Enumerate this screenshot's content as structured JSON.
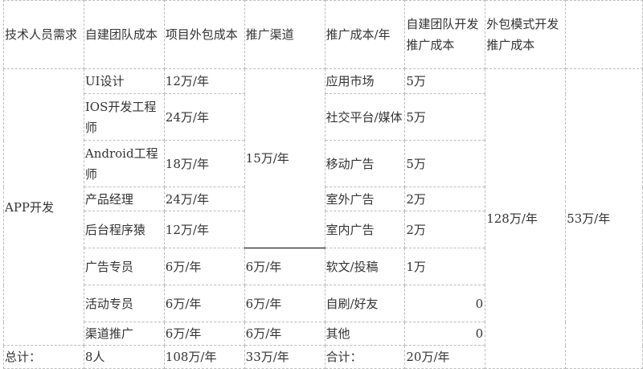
{
  "headers": [
    "技术人员需求",
    "自建团队成本",
    "项目外包成本",
    "推广渠道",
    "推广成本/年",
    "自建团队开发推广成本",
    "外包模式开发推广成本",
    ""
  ],
  "category": "APP开发",
  "promo_channel_shared": "15万/年",
  "self_build_total": "128万/年",
  "outsource_total": "53万/年",
  "rows": [
    {
      "role": "UI设计",
      "outsource": "12万/年",
      "channel": "应用市场",
      "cost": "5万"
    },
    {
      "role": "IOS开发工程师",
      "outsource": "24万/年",
      "channel": "社交平台/媒体",
      "cost": "5万"
    },
    {
      "role": "Android工程师",
      "outsource": "18万/年",
      "channel": "移动广告",
      "cost": "5万"
    },
    {
      "role": "产品经理",
      "outsource": "24万/年",
      "channel": "室外广告",
      "cost": "2万"
    },
    {
      "role": "后台程序猿",
      "outsource": "12万/年",
      "channel": "室内广告",
      "cost": "2万"
    },
    {
      "role": "广告专员",
      "outsource": "6万/年",
      "promo": "6万/年",
      "channel": "软文/投稿",
      "cost": "1万"
    },
    {
      "role": "活动专员",
      "outsource": "6万/年",
      "promo": "6万/年",
      "channel": "自刷/好友",
      "cost": "0"
    },
    {
      "role": "渠道推广",
      "outsource": "6万/年",
      "promo": "6万/年",
      "channel": "其他",
      "cost": "0"
    }
  ],
  "totals": {
    "label": "总计：",
    "people": "8人",
    "outsource": "108万/年",
    "promo": "33万/年",
    "cost_label": "合计：",
    "cost": "20万/年"
  }
}
